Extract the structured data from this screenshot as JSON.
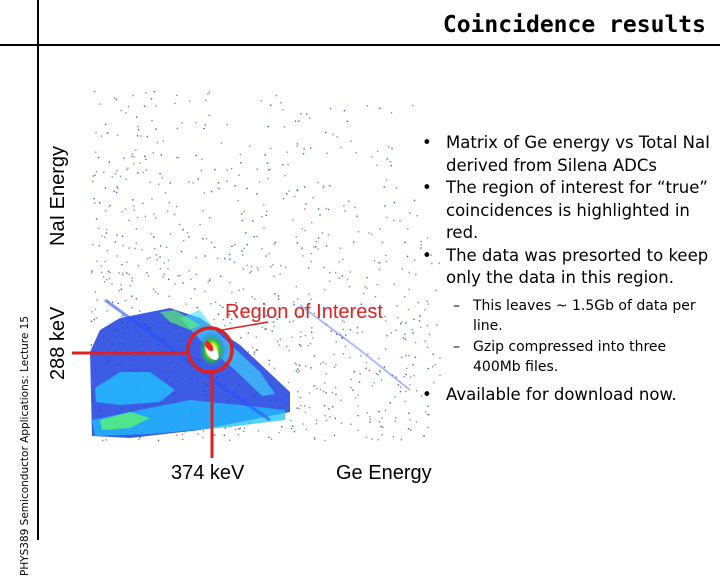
{
  "slide": {
    "title": "Coincidence results",
    "sidebar_text": "PHYS389 Semiconductor Applications: Lecture 15"
  },
  "plot": {
    "y_axis_label": "NaI Energy",
    "y_marker_label": "288 keV",
    "x_axis_label": "Ge Energy",
    "x_marker_label": "374 keV",
    "roi_label": "Region of Interest",
    "roi_color": "#e02020"
  },
  "bullets": [
    {
      "text": "Matrix of Ge energy vs Total NaI derived from Silena ADCs"
    },
    {
      "text": "The region of interest for “true” coincidences is highlighted in red."
    },
    {
      "text": "The data was presorted to keep only the data in this region."
    }
  ],
  "sub_bullets": [
    {
      "text": "This leaves ~ 1.5Gb of data per line."
    },
    {
      "text": "Gzip compressed into three 400Mb files."
    }
  ],
  "final_bullet": {
    "text": "Available for download now."
  },
  "bullet_glyph": "•",
  "dash_glyph": "–"
}
